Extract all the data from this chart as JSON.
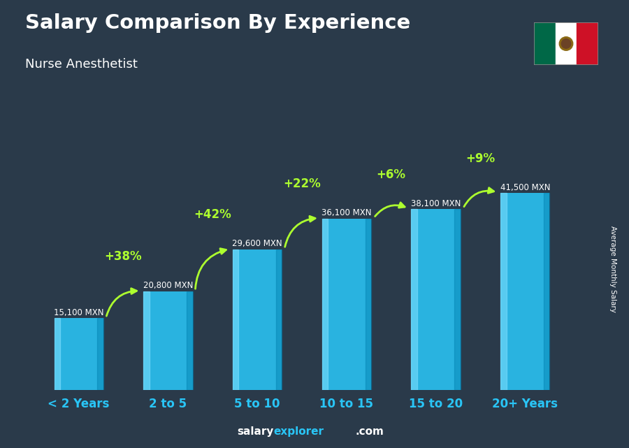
{
  "title": "Salary Comparison By Experience",
  "subtitle": "Nurse Anesthetist",
  "ylabel": "Average Monthly Salary",
  "categories": [
    "< 2 Years",
    "2 to 5",
    "5 to 10",
    "10 to 15",
    "15 to 20",
    "20+ Years"
  ],
  "values": [
    15100,
    20800,
    29600,
    36100,
    38100,
    41500
  ],
  "bar_color": "#29C5F6",
  "pct_changes": [
    "+38%",
    "+42%",
    "+22%",
    "+6%",
    "+9%"
  ],
  "salary_labels": [
    "15,100 MXN",
    "20,800 MXN",
    "29,600 MXN",
    "36,100 MXN",
    "38,100 MXN",
    "41,500 MXN"
  ],
  "pct_color": "#ADFF2F",
  "bg_color": "#2a3a4a",
  "ylim": [
    0,
    52000
  ],
  "footer_salary_color": "#FFFFFF",
  "footer_explorer_color": "#29C5F6",
  "footer_com_color": "#FFFFFF",
  "title_color": "#FFFFFF",
  "subtitle_color": "#FFFFFF",
  "label_color": "#FFFFFF",
  "xtick_color": "#29C5F6"
}
